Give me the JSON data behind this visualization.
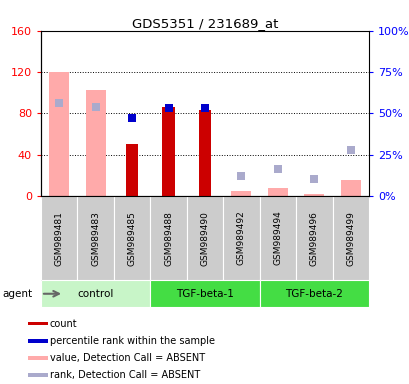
{
  "title": "GDS5351 / 231689_at",
  "samples": [
    "GSM989481",
    "GSM989483",
    "GSM989485",
    "GSM989488",
    "GSM989490",
    "GSM989492",
    "GSM989494",
    "GSM989496",
    "GSM989499"
  ],
  "groups": [
    {
      "name": "control",
      "start": 0,
      "end": 3,
      "color": "#c8f5c8"
    },
    {
      "name": "TGF-beta-1",
      "start": 3,
      "end": 6,
      "color": "#44dd44"
    },
    {
      "name": "TGF-beta-2",
      "start": 6,
      "end": 9,
      "color": "#44dd44"
    }
  ],
  "count_values": [
    null,
    null,
    50,
    86,
    83,
    null,
    null,
    null,
    null
  ],
  "rank_values": [
    null,
    null,
    47,
    53,
    53,
    null,
    null,
    null,
    null
  ],
  "absent_value": [
    120,
    103,
    null,
    null,
    null,
    5,
    8,
    2,
    15
  ],
  "absent_rank": [
    56,
    54,
    null,
    null,
    null,
    12,
    16,
    10,
    28
  ],
  "ylim_left": [
    0,
    160
  ],
  "ylim_right": [
    0,
    100
  ],
  "left_ticks": [
    0,
    40,
    80,
    120,
    160
  ],
  "right_ticks": [
    0,
    25,
    50,
    75,
    100
  ],
  "left_tick_labels": [
    "0",
    "40",
    "80",
    "120",
    "160"
  ],
  "right_tick_labels": [
    "0%",
    "25%",
    "50%",
    "75%",
    "100%"
  ],
  "count_color": "#cc0000",
  "rank_color": "#0000cc",
  "absent_value_color": "#ffaaaa",
  "absent_rank_color": "#aaaacc",
  "absent_bar_width": 0.55,
  "count_bar_width": 0.35,
  "marker_size": 6,
  "legend_items": [
    {
      "color": "#cc0000",
      "label": "count"
    },
    {
      "color": "#0000cc",
      "label": "percentile rank within the sample"
    },
    {
      "color": "#ffaaaa",
      "label": "value, Detection Call = ABSENT"
    },
    {
      "color": "#aaaacc",
      "label": "rank, Detection Call = ABSENT"
    }
  ]
}
